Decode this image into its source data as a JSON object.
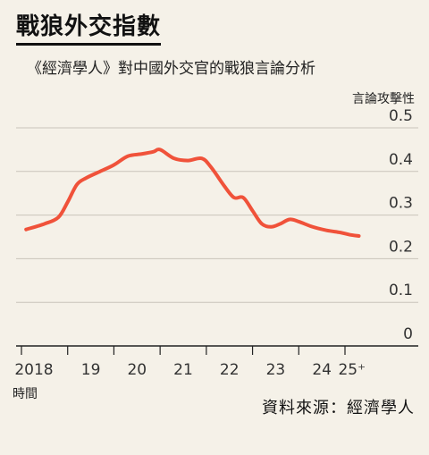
{
  "chart_data": {
    "type": "line",
    "title": "戰狼外交指數",
    "subtitle": "《經濟學人》對中國外交官的戰狼言論分析",
    "ylabel": "言論攻擊性",
    "xlabel": "時間",
    "source": "資料來源：經濟學人",
    "ylim": [
      0,
      0.5
    ],
    "yticks": [
      "0",
      "0.1",
      "0.2",
      "0.3",
      "0.4",
      "0.5"
    ],
    "xticks": [
      "2018",
      "19",
      "20",
      "21",
      "22",
      "23",
      "24",
      "25⁺"
    ],
    "xlim": [
      2018.0,
      2025.4
    ],
    "grid": true,
    "series": [
      {
        "color": "#f0523a",
        "x": [
          2018.1,
          2018.5,
          2018.8,
          2019.0,
          2019.2,
          2019.4,
          2019.7,
          2020.0,
          2020.3,
          2020.6,
          2020.85,
          2021.0,
          2021.3,
          2021.6,
          2021.9,
          2022.1,
          2022.4,
          2022.6,
          2022.8,
          2023.0,
          2023.2,
          2023.4,
          2023.6,
          2023.8,
          2024.0,
          2024.3,
          2024.6,
          2024.9,
          2025.1,
          2025.3
        ],
        "y": [
          0.267,
          0.28,
          0.295,
          0.33,
          0.37,
          0.385,
          0.4,
          0.415,
          0.435,
          0.44,
          0.445,
          0.45,
          0.43,
          0.425,
          0.43,
          0.41,
          0.365,
          0.34,
          0.34,
          0.31,
          0.28,
          0.273,
          0.28,
          0.29,
          0.285,
          0.273,
          0.265,
          0.26,
          0.255,
          0.252
        ]
      }
    ]
  }
}
